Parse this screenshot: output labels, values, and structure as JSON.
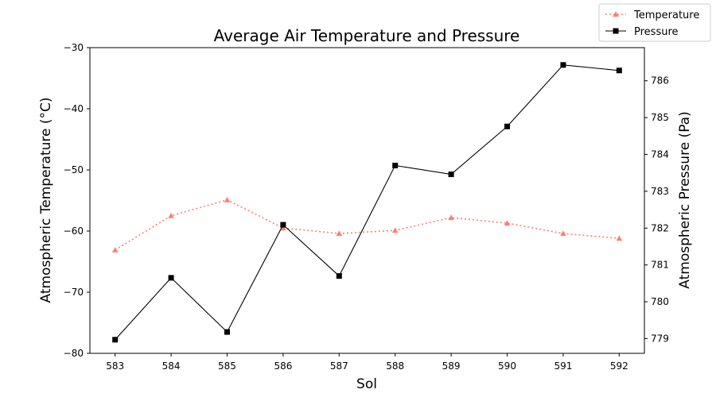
{
  "chart_data": {
    "type": "line",
    "title": "Average Air Temperature and Pressure",
    "xlabel": "Sol",
    "ylabel": "Atmospheric Temperature (°C)",
    "y2label": "Atmospheric Pressure (Pa)",
    "x": [
      583,
      584,
      585,
      586,
      587,
      588,
      589,
      590,
      591,
      592
    ],
    "xlim": [
      582.55,
      592.45
    ],
    "ylim": [
      -80,
      -30
    ],
    "y2lim": [
      778.6,
      786.9
    ],
    "yticks": [
      -80,
      -70,
      -60,
      -50,
      -40,
      -30
    ],
    "y2ticks": [
      779,
      780,
      781,
      782,
      783,
      784,
      785,
      786
    ],
    "legend_position": "top-right",
    "grid": false,
    "series": [
      {
        "name": "Temperature",
        "axis": "left",
        "color": "#fa8072",
        "line_style": "dotted",
        "marker": "triangle",
        "values": [
          -63.1,
          -57.5,
          -54.9,
          -59.5,
          -60.4,
          -59.9,
          -57.8,
          -58.7,
          -60.4,
          -61.2
        ]
      },
      {
        "name": "Pressure",
        "axis": "right",
        "color": "#000000",
        "line_style": "solid",
        "marker": "square",
        "values": [
          778.97,
          780.65,
          779.18,
          782.09,
          780.7,
          783.7,
          783.46,
          784.76,
          786.43,
          786.28
        ]
      }
    ]
  }
}
